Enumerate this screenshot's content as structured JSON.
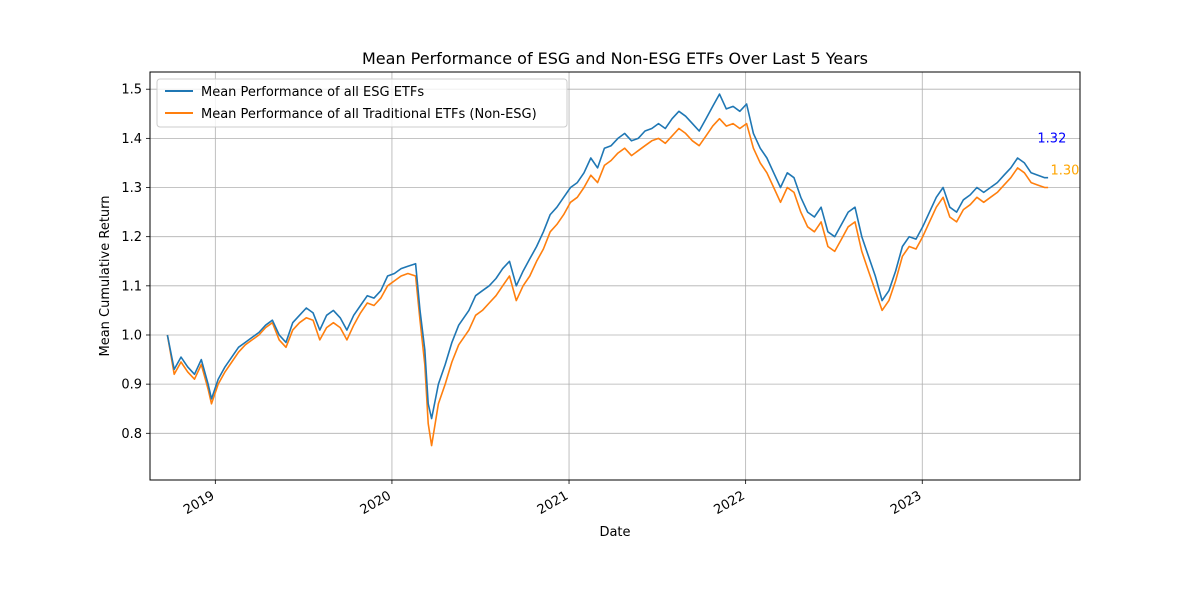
{
  "chart_data": {
    "type": "line",
    "title": "Mean Performance of ESG and Non-ESG ETFs Over Last 5 Years",
    "xlabel": "Date",
    "ylabel": "Mean Cumulative Return",
    "xlim": [
      "2018-08-19",
      "2023-11-23"
    ],
    "ylim": [
      0.705,
      1.535
    ],
    "x_ticks": [
      "2019-01-01",
      "2020-01-01",
      "2021-01-01",
      "2022-01-01",
      "2023-01-01"
    ],
    "x_tick_labels": [
      "2019",
      "2020",
      "2021",
      "2022",
      "2023"
    ],
    "y_ticks": [
      0.8,
      0.9,
      1.0,
      1.1,
      1.2,
      1.3,
      1.4,
      1.5
    ],
    "y_tick_labels": [
      "0.8",
      "0.9",
      "1.0",
      "1.1",
      "1.2",
      "1.3",
      "1.4",
      "1.5"
    ],
    "grid": true,
    "legend_position": "upper-left",
    "x": [
      "2018-09-24",
      "2018-10-08",
      "2018-10-22",
      "2018-11-05",
      "2018-11-19",
      "2018-12-03",
      "2018-12-17",
      "2018-12-24",
      "2019-01-07",
      "2019-01-21",
      "2019-02-04",
      "2019-02-18",
      "2019-03-04",
      "2019-03-18",
      "2019-04-01",
      "2019-04-15",
      "2019-04-29",
      "2019-05-13",
      "2019-05-27",
      "2019-06-10",
      "2019-06-24",
      "2019-07-08",
      "2019-07-22",
      "2019-08-05",
      "2019-08-19",
      "2019-09-02",
      "2019-09-16",
      "2019-09-30",
      "2019-10-14",
      "2019-10-28",
      "2019-11-11",
      "2019-11-25",
      "2019-12-09",
      "2019-12-23",
      "2020-01-06",
      "2020-01-20",
      "2020-02-03",
      "2020-02-19",
      "2020-02-28",
      "2020-03-09",
      "2020-03-16",
      "2020-03-23",
      "2020-04-06",
      "2020-04-20",
      "2020-05-04",
      "2020-05-18",
      "2020-06-08",
      "2020-06-22",
      "2020-07-06",
      "2020-07-20",
      "2020-08-03",
      "2020-08-17",
      "2020-08-31",
      "2020-09-14",
      "2020-09-28",
      "2020-10-12",
      "2020-10-26",
      "2020-11-09",
      "2020-11-23",
      "2020-12-07",
      "2020-12-21",
      "2021-01-04",
      "2021-01-18",
      "2021-02-01",
      "2021-02-15",
      "2021-03-01",
      "2021-03-15",
      "2021-03-29",
      "2021-04-12",
      "2021-04-26",
      "2021-05-10",
      "2021-05-24",
      "2021-06-07",
      "2021-06-21",
      "2021-07-05",
      "2021-07-19",
      "2021-08-02",
      "2021-08-16",
      "2021-08-30",
      "2021-09-13",
      "2021-09-27",
      "2021-10-11",
      "2021-10-25",
      "2021-11-08",
      "2021-11-22",
      "2021-12-06",
      "2021-12-20",
      "2022-01-03",
      "2022-01-17",
      "2022-01-31",
      "2022-02-14",
      "2022-02-28",
      "2022-03-14",
      "2022-03-28",
      "2022-04-11",
      "2022-04-25",
      "2022-05-09",
      "2022-05-23",
      "2022-06-06",
      "2022-06-20",
      "2022-07-04",
      "2022-07-18",
      "2022-08-01",
      "2022-08-15",
      "2022-08-29",
      "2022-09-12",
      "2022-09-26",
      "2022-10-10",
      "2022-10-24",
      "2022-11-07",
      "2022-11-21",
      "2022-12-05",
      "2022-12-19",
      "2023-01-02",
      "2023-01-16",
      "2023-01-30",
      "2023-02-13",
      "2023-02-27",
      "2023-03-13",
      "2023-03-27",
      "2023-04-10",
      "2023-04-24",
      "2023-05-08",
      "2023-05-22",
      "2023-06-05",
      "2023-06-19",
      "2023-07-03",
      "2023-07-17",
      "2023-07-31",
      "2023-08-14",
      "2023-08-28",
      "2023-09-11",
      "2023-09-18"
    ],
    "series": [
      {
        "name": "Mean Performance of all ESG ETFs",
        "color": "#1f77b4",
        "values": [
          1.0,
          0.93,
          0.955,
          0.935,
          0.92,
          0.95,
          0.9,
          0.87,
          0.91,
          0.935,
          0.955,
          0.975,
          0.985,
          0.995,
          1.005,
          1.02,
          1.03,
          1.0,
          0.985,
          1.025,
          1.04,
          1.055,
          1.045,
          1.01,
          1.04,
          1.05,
          1.035,
          1.01,
          1.04,
          1.06,
          1.08,
          1.075,
          1.09,
          1.12,
          1.125,
          1.135,
          1.14,
          1.145,
          1.05,
          0.97,
          0.86,
          0.83,
          0.9,
          0.94,
          0.985,
          1.02,
          1.05,
          1.08,
          1.09,
          1.1,
          1.115,
          1.135,
          1.15,
          1.1,
          1.13,
          1.155,
          1.18,
          1.21,
          1.245,
          1.26,
          1.28,
          1.3,
          1.31,
          1.33,
          1.36,
          1.34,
          1.38,
          1.385,
          1.4,
          1.41,
          1.395,
          1.4,
          1.415,
          1.42,
          1.43,
          1.42,
          1.44,
          1.455,
          1.445,
          1.43,
          1.415,
          1.44,
          1.465,
          1.49,
          1.46,
          1.465,
          1.455,
          1.47,
          1.41,
          1.38,
          1.36,
          1.33,
          1.3,
          1.33,
          1.32,
          1.28,
          1.25,
          1.24,
          1.26,
          1.21,
          1.2,
          1.225,
          1.25,
          1.26,
          1.2,
          1.16,
          1.12,
          1.07,
          1.09,
          1.13,
          1.18,
          1.2,
          1.195,
          1.22,
          1.25,
          1.28,
          1.3,
          1.26,
          1.25,
          1.275,
          1.285,
          1.3,
          1.29,
          1.3,
          1.31,
          1.325,
          1.34,
          1.36,
          1.35,
          1.33,
          1.325,
          1.32,
          1.32
        ]
      },
      {
        "name": "Mean Performance of all Traditional ETFs (Non-ESG)",
        "color": "#ff7f0e",
        "values": [
          1.0,
          0.92,
          0.945,
          0.925,
          0.91,
          0.94,
          0.89,
          0.86,
          0.9,
          0.925,
          0.945,
          0.965,
          0.98,
          0.99,
          1.0,
          1.015,
          1.025,
          0.99,
          0.975,
          1.01,
          1.025,
          1.035,
          1.03,
          0.99,
          1.015,
          1.025,
          1.015,
          0.99,
          1.02,
          1.045,
          1.065,
          1.06,
          1.075,
          1.1,
          1.11,
          1.12,
          1.125,
          1.12,
          1.03,
          0.94,
          0.82,
          0.775,
          0.86,
          0.9,
          0.945,
          0.98,
          1.01,
          1.04,
          1.05,
          1.065,
          1.08,
          1.1,
          1.12,
          1.07,
          1.1,
          1.12,
          1.15,
          1.175,
          1.21,
          1.225,
          1.245,
          1.27,
          1.28,
          1.3,
          1.325,
          1.31,
          1.345,
          1.355,
          1.37,
          1.38,
          1.365,
          1.375,
          1.385,
          1.395,
          1.4,
          1.39,
          1.405,
          1.42,
          1.41,
          1.395,
          1.385,
          1.405,
          1.425,
          1.44,
          1.425,
          1.43,
          1.42,
          1.43,
          1.38,
          1.35,
          1.33,
          1.3,
          1.27,
          1.3,
          1.29,
          1.25,
          1.22,
          1.21,
          1.23,
          1.18,
          1.17,
          1.195,
          1.22,
          1.23,
          1.17,
          1.13,
          1.09,
          1.05,
          1.07,
          1.11,
          1.16,
          1.18,
          1.175,
          1.2,
          1.23,
          1.26,
          1.28,
          1.24,
          1.23,
          1.255,
          1.265,
          1.28,
          1.27,
          1.28,
          1.29,
          1.305,
          1.32,
          1.34,
          1.33,
          1.31,
          1.305,
          1.3,
          1.3
        ]
      }
    ],
    "annotations": [
      {
        "text": "1.32",
        "x": "2023-08-27",
        "y": 1.4,
        "color": "#0000ff"
      },
      {
        "text": "1.30",
        "x": "2023-09-23",
        "y": 1.335,
        "color": "#ffa500"
      }
    ]
  }
}
